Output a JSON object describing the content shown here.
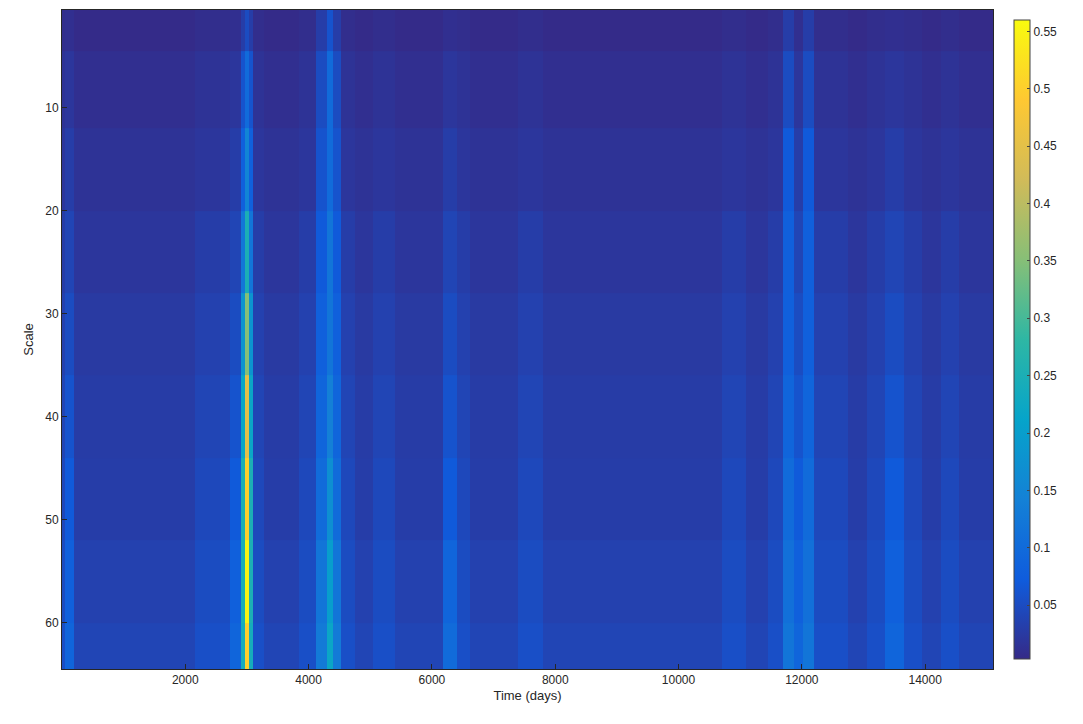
{
  "chart_data": {
    "type": "heatmap",
    "xlabel": "Time (days)",
    "ylabel": "Scale",
    "x": [
      1,
      100,
      300,
      500,
      800,
      1200,
      1600,
      2000,
      2300,
      2600,
      2850,
      2950,
      3000,
      3050,
      3150,
      3400,
      3700,
      4000,
      4250,
      4350,
      4450,
      4600,
      4900,
      5200,
      5600,
      6000,
      6350,
      6450,
      6800,
      7200,
      7600,
      8000,
      8500,
      9000,
      9500,
      10000,
      10500,
      10900,
      11300,
      11600,
      11800,
      11950,
      12100,
      12300,
      12600,
      12900,
      13200,
      13500,
      13800,
      14100,
      14400,
      14700,
      15000
    ],
    "y": [
      1,
      8,
      16,
      24,
      32,
      40,
      48,
      56,
      64
    ],
    "cells": [
      [
        0.008,
        0.01,
        0.005,
        0.005,
        0.005,
        0.005,
        0.005,
        0.005,
        0.008,
        0.008,
        0.01,
        0.03,
        0.05,
        0.03,
        0.008,
        0.005,
        0.005,
        0.008,
        0.03,
        0.06,
        0.03,
        0.008,
        0.005,
        0.008,
        0.005,
        0.005,
        0.01,
        0.008,
        0.005,
        0.005,
        0.008,
        0.005,
        0.005,
        0.005,
        0.005,
        0.005,
        0.005,
        0.008,
        0.005,
        0.008,
        0.03,
        0.01,
        0.03,
        0.008,
        0.008,
        0.005,
        0.008,
        0.01,
        0.008,
        0.005,
        0.008,
        0.005,
        0.005
      ],
      [
        0.015,
        0.02,
        0.01,
        0.01,
        0.01,
        0.01,
        0.01,
        0.01,
        0.015,
        0.015,
        0.02,
        0.06,
        0.1,
        0.06,
        0.015,
        0.01,
        0.01,
        0.015,
        0.05,
        0.1,
        0.05,
        0.015,
        0.01,
        0.015,
        0.01,
        0.01,
        0.02,
        0.015,
        0.01,
        0.01,
        0.015,
        0.01,
        0.01,
        0.01,
        0.01,
        0.01,
        0.01,
        0.015,
        0.01,
        0.015,
        0.05,
        0.02,
        0.05,
        0.015,
        0.015,
        0.01,
        0.015,
        0.02,
        0.015,
        0.01,
        0.015,
        0.01,
        0.01
      ],
      [
        0.02,
        0.03,
        0.015,
        0.015,
        0.015,
        0.015,
        0.015,
        0.015,
        0.02,
        0.02,
        0.03,
        0.08,
        0.15,
        0.08,
        0.02,
        0.015,
        0.015,
        0.02,
        0.06,
        0.1,
        0.06,
        0.02,
        0.015,
        0.02,
        0.015,
        0.015,
        0.03,
        0.02,
        0.015,
        0.015,
        0.02,
        0.015,
        0.015,
        0.015,
        0.015,
        0.015,
        0.015,
        0.02,
        0.015,
        0.02,
        0.07,
        0.03,
        0.07,
        0.02,
        0.02,
        0.015,
        0.02,
        0.03,
        0.02,
        0.015,
        0.02,
        0.015,
        0.015
      ],
      [
        0.03,
        0.04,
        0.02,
        0.02,
        0.02,
        0.02,
        0.02,
        0.02,
        0.03,
        0.03,
        0.04,
        0.12,
        0.25,
        0.12,
        0.03,
        0.02,
        0.02,
        0.03,
        0.07,
        0.12,
        0.07,
        0.03,
        0.02,
        0.03,
        0.02,
        0.02,
        0.04,
        0.03,
        0.02,
        0.02,
        0.03,
        0.02,
        0.02,
        0.02,
        0.02,
        0.02,
        0.02,
        0.03,
        0.02,
        0.03,
        0.08,
        0.04,
        0.08,
        0.03,
        0.03,
        0.02,
        0.03,
        0.04,
        0.03,
        0.02,
        0.03,
        0.02,
        0.02
      ],
      [
        0.035,
        0.05,
        0.025,
        0.025,
        0.025,
        0.025,
        0.025,
        0.025,
        0.035,
        0.035,
        0.05,
        0.18,
        0.35,
        0.18,
        0.035,
        0.025,
        0.025,
        0.035,
        0.08,
        0.12,
        0.08,
        0.035,
        0.025,
        0.035,
        0.025,
        0.025,
        0.05,
        0.035,
        0.025,
        0.025,
        0.035,
        0.025,
        0.025,
        0.025,
        0.025,
        0.025,
        0.025,
        0.035,
        0.025,
        0.035,
        0.08,
        0.05,
        0.08,
        0.035,
        0.035,
        0.025,
        0.035,
        0.05,
        0.035,
        0.025,
        0.035,
        0.025,
        0.025
      ],
      [
        0.04,
        0.06,
        0.028,
        0.028,
        0.028,
        0.028,
        0.028,
        0.028,
        0.04,
        0.04,
        0.06,
        0.22,
        0.45,
        0.22,
        0.04,
        0.028,
        0.028,
        0.04,
        0.09,
        0.14,
        0.09,
        0.04,
        0.028,
        0.04,
        0.028,
        0.028,
        0.06,
        0.04,
        0.028,
        0.028,
        0.04,
        0.028,
        0.028,
        0.028,
        0.028,
        0.028,
        0.028,
        0.04,
        0.028,
        0.04,
        0.09,
        0.06,
        0.09,
        0.04,
        0.04,
        0.028,
        0.04,
        0.06,
        0.04,
        0.028,
        0.04,
        0.028,
        0.028
      ],
      [
        0.045,
        0.07,
        0.03,
        0.03,
        0.03,
        0.03,
        0.03,
        0.03,
        0.045,
        0.045,
        0.07,
        0.25,
        0.5,
        0.25,
        0.045,
        0.03,
        0.03,
        0.045,
        0.1,
        0.17,
        0.1,
        0.045,
        0.03,
        0.045,
        0.03,
        0.03,
        0.07,
        0.045,
        0.03,
        0.03,
        0.045,
        0.03,
        0.03,
        0.03,
        0.03,
        0.03,
        0.03,
        0.045,
        0.03,
        0.045,
        0.1,
        0.07,
        0.1,
        0.045,
        0.045,
        0.03,
        0.045,
        0.07,
        0.045,
        0.03,
        0.045,
        0.03,
        0.03
      ],
      [
        0.05,
        0.08,
        0.035,
        0.035,
        0.035,
        0.035,
        0.035,
        0.035,
        0.05,
        0.05,
        0.08,
        0.25,
        0.55,
        0.25,
        0.05,
        0.035,
        0.035,
        0.05,
        0.12,
        0.2,
        0.12,
        0.05,
        0.035,
        0.05,
        0.035,
        0.035,
        0.09,
        0.05,
        0.035,
        0.035,
        0.05,
        0.035,
        0.035,
        0.035,
        0.035,
        0.035,
        0.035,
        0.05,
        0.035,
        0.05,
        0.11,
        0.08,
        0.11,
        0.05,
        0.05,
        0.035,
        0.05,
        0.08,
        0.05,
        0.035,
        0.05,
        0.035,
        0.035
      ],
      [
        0.055,
        0.09,
        0.04,
        0.04,
        0.04,
        0.04,
        0.04,
        0.04,
        0.055,
        0.055,
        0.09,
        0.24,
        0.5,
        0.24,
        0.055,
        0.04,
        0.04,
        0.055,
        0.13,
        0.22,
        0.13,
        0.055,
        0.04,
        0.055,
        0.04,
        0.04,
        0.1,
        0.055,
        0.04,
        0.04,
        0.055,
        0.04,
        0.04,
        0.04,
        0.04,
        0.04,
        0.04,
        0.055,
        0.04,
        0.055,
        0.12,
        0.09,
        0.12,
        0.055,
        0.055,
        0.04,
        0.055,
        0.09,
        0.055,
        0.04,
        0.055,
        0.04,
        0.04
      ]
    ],
    "xlim": [
      1,
      15100
    ],
    "xticks": [
      2000,
      4000,
      6000,
      8000,
      10000,
      12000,
      14000
    ],
    "ylim": [
      64.5,
      0.5
    ],
    "yticks": [
      10,
      20,
      30,
      40,
      50,
      60
    ],
    "colorbar": {
      "range": [
        0.003,
        0.56
      ],
      "ticks": [
        0.05,
        0.1,
        0.15,
        0.2,
        0.25,
        0.3,
        0.35,
        0.4,
        0.45,
        0.5,
        0.55
      ]
    },
    "grid": false
  }
}
